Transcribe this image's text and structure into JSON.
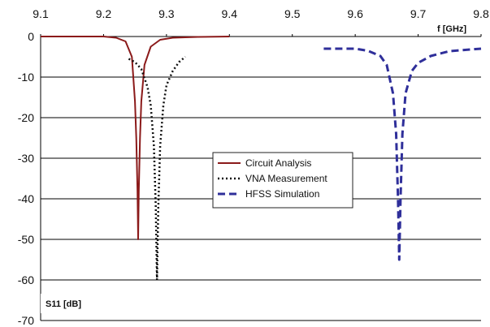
{
  "chart_data": {
    "type": "line",
    "xlabel": "f [GHz]",
    "ylabel": "S11 [dB]",
    "xlim": [
      9.1,
      9.8
    ],
    "ylim": [
      -70,
      0
    ],
    "x_ticks": [
      "9.1",
      "9.2",
      "9.3",
      "9.4",
      "9.5",
      "9.6",
      "9.7",
      "9.8"
    ],
    "y_ticks": [
      "0",
      "-10",
      "-20",
      "-30",
      "-40",
      "-50",
      "-60",
      "-70"
    ],
    "x_axis_position": "top",
    "grid": "horizontal",
    "legend_position": "center",
    "series": [
      {
        "name": "Circuit Analysis",
        "color": "#8b1a1a",
        "dash": "solid",
        "x": [
          9.1,
          9.15,
          9.2,
          9.22,
          9.235,
          9.245,
          9.25,
          9.252,
          9.254,
          9.255,
          9.256,
          9.258,
          9.26,
          9.265,
          9.275,
          9.29,
          9.31,
          9.35,
          9.4
        ],
        "y": [
          0,
          0,
          0,
          -0.3,
          -1.2,
          -5,
          -16,
          -25,
          -38,
          -50,
          -38,
          -25,
          -16,
          -7,
          -2.5,
          -0.8,
          -0.3,
          -0.1,
          0
        ]
      },
      {
        "name": "VNA Measurement",
        "color": "#111111",
        "dash": "dotted",
        "x": [
          9.24,
          9.25,
          9.26,
          9.27,
          9.275,
          9.28,
          9.283,
          9.285,
          9.287,
          9.29,
          9.295,
          9.3,
          9.31,
          9.32,
          9.33
        ],
        "y": [
          -5.5,
          -6.3,
          -8,
          -12.5,
          -17,
          -27,
          -42,
          -60,
          -42,
          -27,
          -17,
          -12,
          -8.5,
          -6.3,
          -5
        ]
      },
      {
        "name": "HFSS Simulation",
        "color": "#2f2f9a",
        "dash": "dashed",
        "x": [
          9.55,
          9.6,
          9.62,
          9.64,
          9.65,
          9.66,
          9.665,
          9.668,
          9.67,
          9.672,
          9.675,
          9.68,
          9.69,
          9.7,
          9.72,
          9.75,
          9.8
        ],
        "y": [
          -3,
          -3,
          -3.5,
          -4.8,
          -7,
          -14,
          -24,
          -40,
          -55,
          -40,
          -24,
          -14,
          -8.5,
          -6.5,
          -4.8,
          -3.6,
          -3
        ]
      }
    ]
  }
}
